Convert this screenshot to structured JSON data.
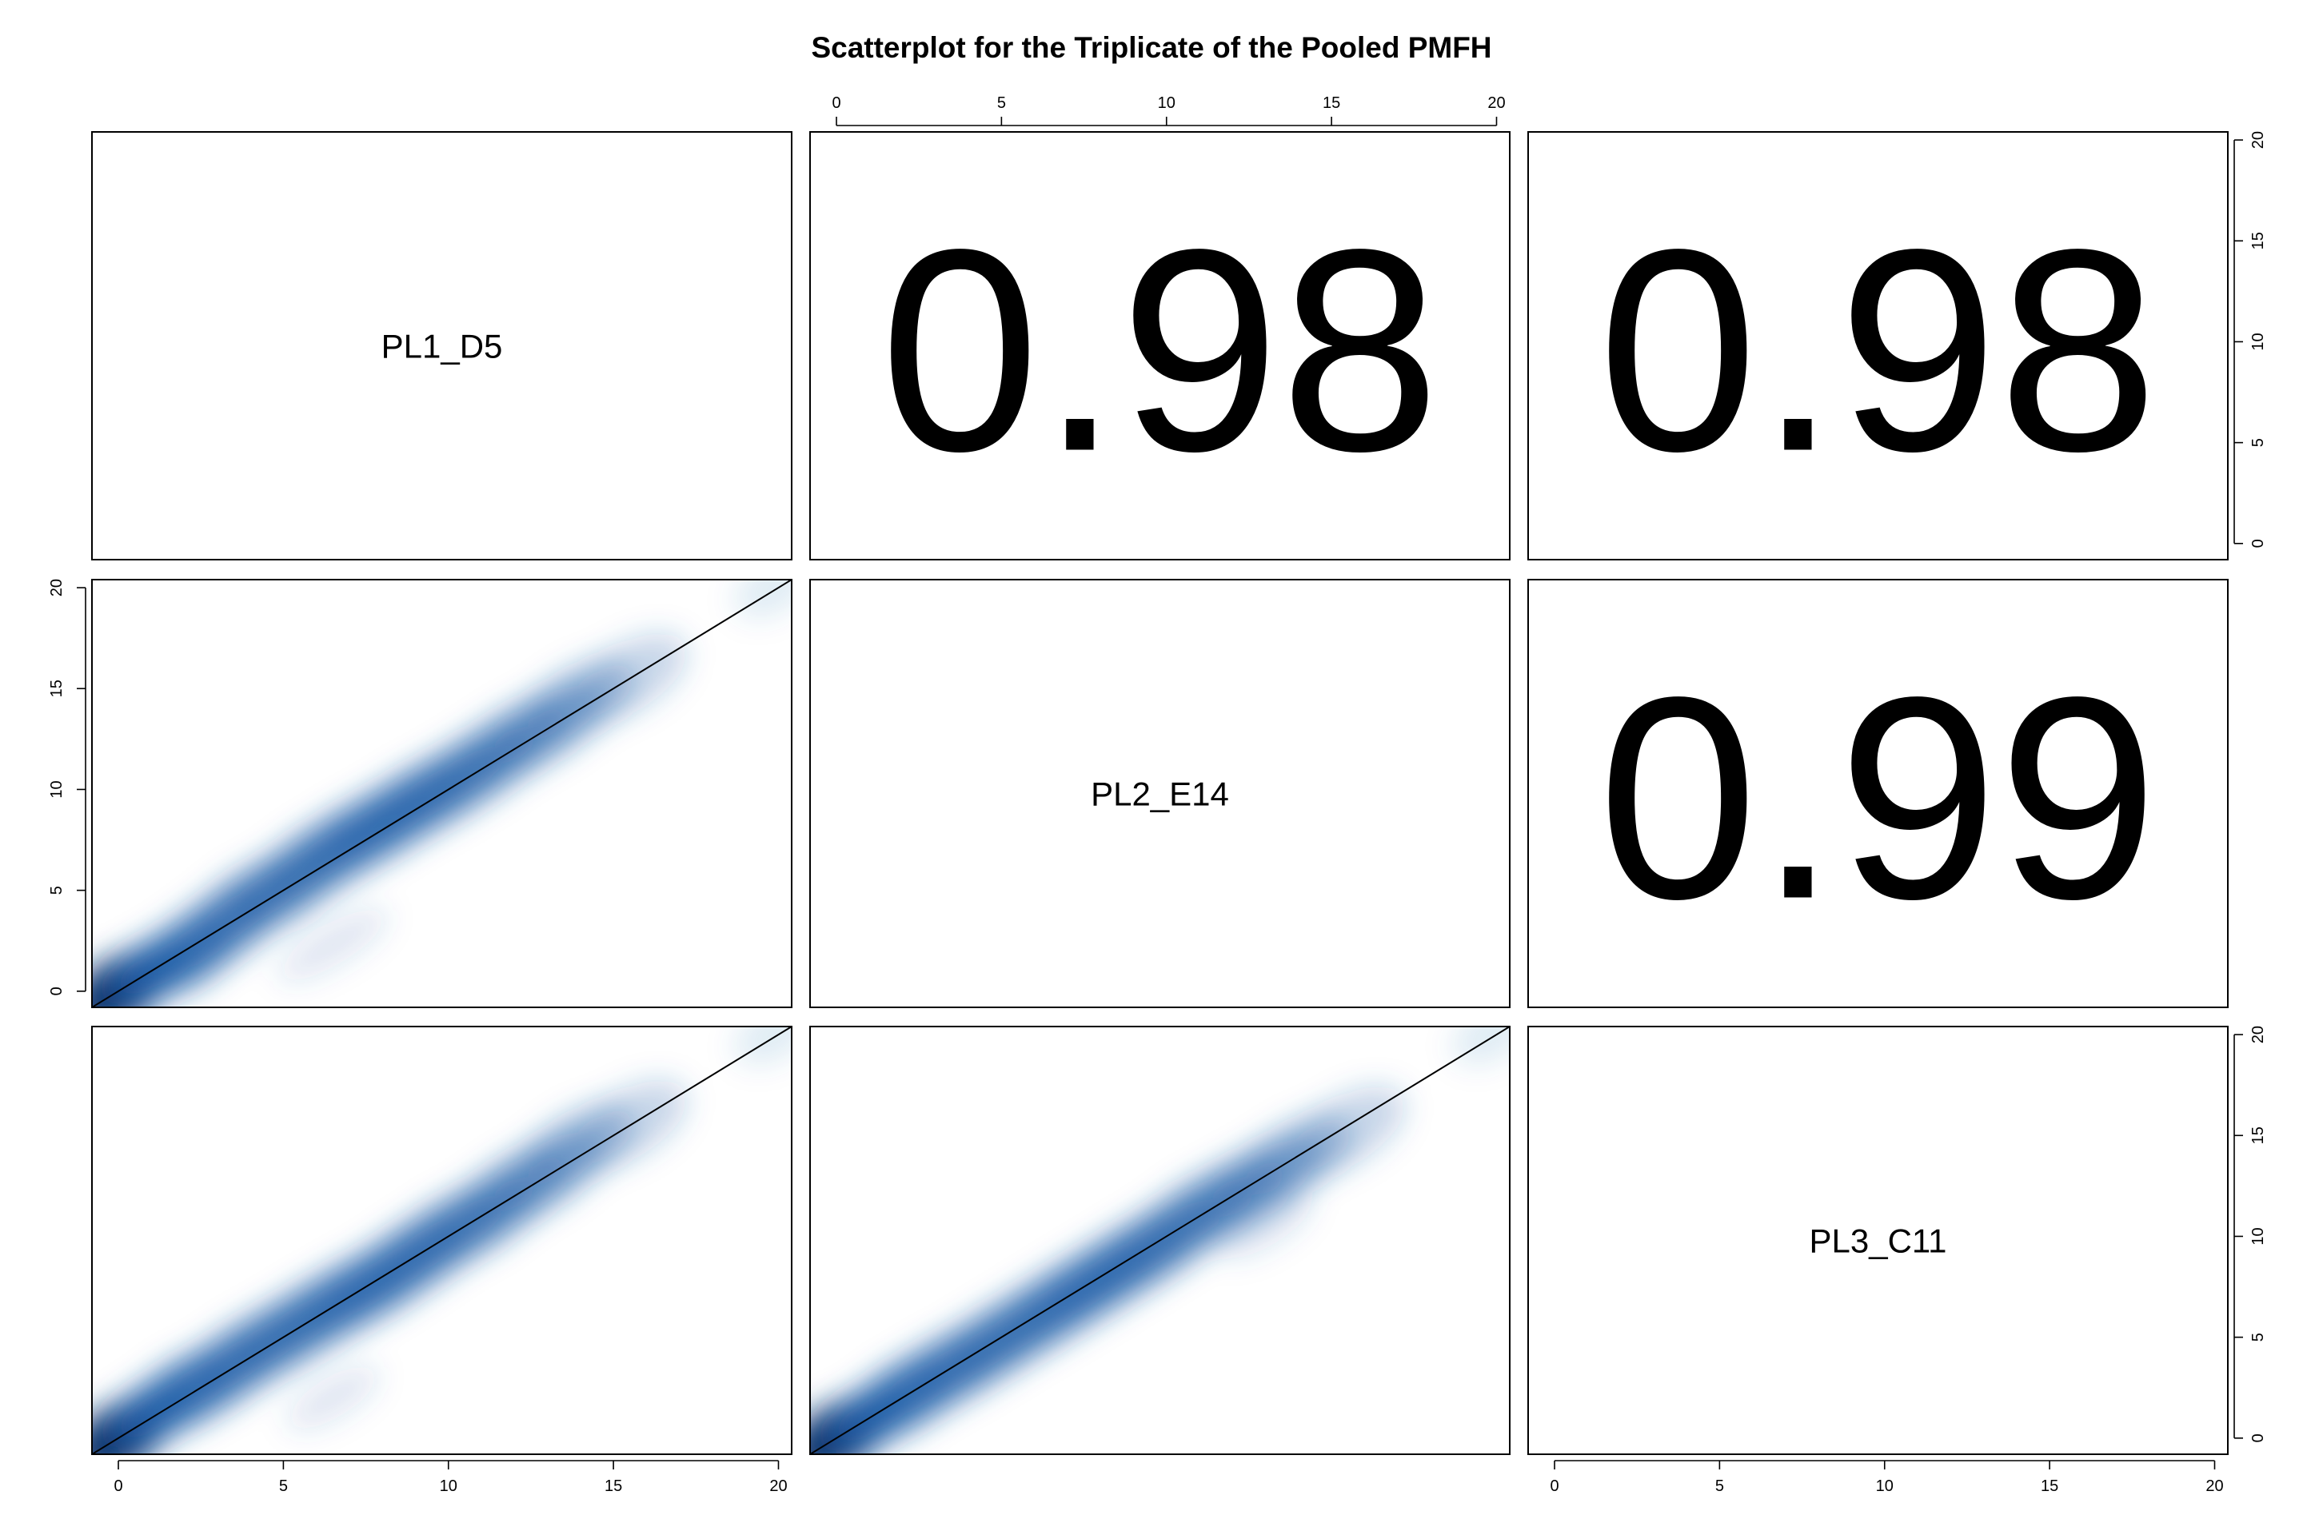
{
  "chart_data": {
    "type": "scatter",
    "title": "Scatterplot for the Triplicate of the Pooled PMFH",
    "variables": [
      "PL1_D5",
      "PL2_E14",
      "PL3_C11"
    ],
    "axis_range": [
      -0.8,
      20.4
    ],
    "ticks": [
      0,
      5,
      10,
      15,
      20
    ],
    "tick_labels": [
      "0",
      "5",
      "10",
      "15",
      "20"
    ],
    "correlations": [
      {
        "row": 0,
        "col": 1,
        "value": "0.98"
      },
      {
        "row": 0,
        "col": 2,
        "value": "0.98"
      },
      {
        "row": 1,
        "col": 2,
        "value": "0.99"
      }
    ],
    "density_panels": [
      {
        "row": 1,
        "col": 0,
        "reference_line": [
          [
            -0.8,
            -0.8
          ],
          [
            20.4,
            20.4
          ]
        ],
        "blobs": [
          [
            0,
            0,
            1.0,
            1.0,
            1.0
          ],
          [
            1,
            1,
            0.9,
            0.9,
            0.8
          ],
          [
            2,
            1.8,
            1.0,
            1.0,
            0.7
          ],
          [
            3,
            3,
            1.1,
            1.0,
            0.6
          ],
          [
            4,
            4.3,
            1.1,
            1.0,
            0.55
          ],
          [
            5,
            5.2,
            1.1,
            1.0,
            0.55
          ],
          [
            6,
            6.4,
            1.1,
            1.0,
            0.55
          ],
          [
            7,
            7.4,
            1.1,
            1.0,
            0.6
          ],
          [
            8,
            8.3,
            1.1,
            1.0,
            0.6
          ],
          [
            9,
            9.3,
            1.1,
            1.0,
            0.6
          ],
          [
            10,
            10.2,
            1.1,
            1.0,
            0.55
          ],
          [
            11,
            11.2,
            1.1,
            1.0,
            0.5
          ],
          [
            12,
            12.3,
            1.1,
            1.0,
            0.45
          ],
          [
            13,
            13.2,
            1.1,
            1.0,
            0.4
          ],
          [
            14,
            14.4,
            1.1,
            1.0,
            0.35
          ],
          [
            15.5,
            15.6,
            1.2,
            1.0,
            0.25
          ],
          [
            6.5,
            2.3,
            1.2,
            0.6,
            0.15
          ],
          [
            19.8,
            20,
            0.8,
            0.8,
            0.12
          ]
        ]
      },
      {
        "row": 2,
        "col": 0,
        "reference_line": [
          [
            -0.8,
            -0.8
          ],
          [
            20.4,
            20.4
          ]
        ],
        "blobs": [
          [
            0,
            0,
            1.0,
            1.0,
            1.0
          ],
          [
            1,
            1.2,
            0.9,
            0.9,
            0.8
          ],
          [
            2,
            2.2,
            1.0,
            1.0,
            0.7
          ],
          [
            3,
            3.1,
            1.1,
            1.0,
            0.6
          ],
          [
            4,
            4.2,
            1.1,
            1.0,
            0.55
          ],
          [
            5,
            5.1,
            1.1,
            1.0,
            0.55
          ],
          [
            6,
            6.1,
            1.1,
            1.0,
            0.55
          ],
          [
            7,
            7.0,
            1.1,
            1.0,
            0.6
          ],
          [
            8,
            7.9,
            1.1,
            1.0,
            0.6
          ],
          [
            9,
            9.0,
            1.1,
            1.0,
            0.6
          ],
          [
            10,
            10.1,
            1.1,
            1.0,
            0.55
          ],
          [
            11,
            11.0,
            1.1,
            1.0,
            0.5
          ],
          [
            12,
            12.2,
            1.1,
            1.0,
            0.45
          ],
          [
            13,
            13.2,
            1.1,
            1.0,
            0.4
          ],
          [
            14,
            14.5,
            1.1,
            1.0,
            0.35
          ],
          [
            15.5,
            15.6,
            1.2,
            1.0,
            0.25
          ],
          [
            6.5,
            2.0,
            1.0,
            0.6,
            0.15
          ],
          [
            19.8,
            20,
            0.8,
            0.8,
            0.12
          ]
        ]
      },
      {
        "row": 2,
        "col": 1,
        "reference_line": [
          [
            -0.8,
            -0.8
          ],
          [
            20.4,
            20.4
          ]
        ],
        "blobs": [
          [
            0,
            0,
            1.0,
            1.0,
            1.0
          ],
          [
            1,
            1.0,
            0.9,
            0.9,
            0.8
          ],
          [
            2,
            2.0,
            1.0,
            1.0,
            0.7
          ],
          [
            3,
            3.0,
            1.1,
            1.0,
            0.6
          ],
          [
            4,
            3.9,
            1.1,
            1.0,
            0.55
          ],
          [
            5,
            4.9,
            1.1,
            1.0,
            0.55
          ],
          [
            6,
            5.9,
            1.1,
            1.0,
            0.55
          ],
          [
            7,
            6.9,
            1.1,
            1.0,
            0.6
          ],
          [
            8,
            7.9,
            1.1,
            1.0,
            0.6
          ],
          [
            9,
            8.9,
            1.1,
            1.0,
            0.6
          ],
          [
            10,
            9.9,
            1.1,
            1.0,
            0.55
          ],
          [
            11,
            11.1,
            1.1,
            1.0,
            0.5
          ],
          [
            12,
            12.0,
            1.1,
            1.0,
            0.45
          ],
          [
            13,
            12.9,
            1.1,
            1.0,
            0.4
          ],
          [
            14,
            14.0,
            1.1,
            1.0,
            0.35
          ],
          [
            15.5,
            15.3,
            1.2,
            1.0,
            0.25
          ],
          [
            13,
            10.5,
            1.0,
            0.6,
            0.15
          ],
          [
            19.8,
            20,
            0.8,
            0.8,
            0.12
          ]
        ]
      }
    ],
    "colors": {
      "density": "#1f5fa8",
      "density_dark": "#08306b",
      "background": "#ffffff",
      "line": "#000000"
    },
    "grid": false,
    "legend": "none"
  }
}
